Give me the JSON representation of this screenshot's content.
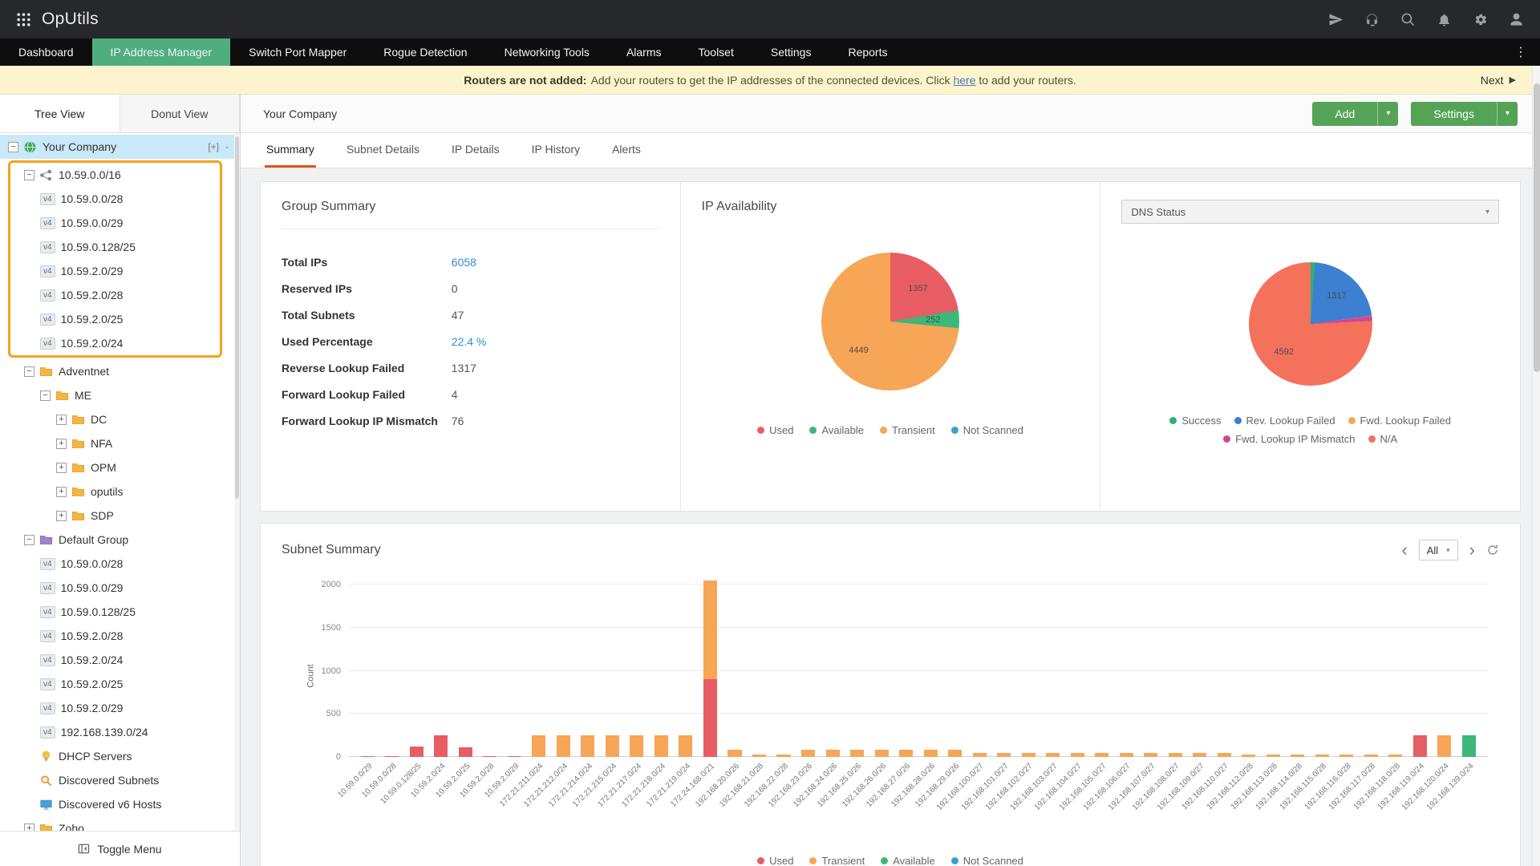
{
  "app": {
    "title": "OpUtils"
  },
  "topbar": {
    "icons": [
      "send",
      "headset",
      "search",
      "bell",
      "gear",
      "user"
    ]
  },
  "nav": {
    "items": [
      {
        "label": "Dashboard",
        "active": false
      },
      {
        "label": "IP Address Manager",
        "active": true
      },
      {
        "label": "Switch Port Mapper",
        "active": false
      },
      {
        "label": "Rogue Detection",
        "active": false
      },
      {
        "label": "Networking Tools",
        "active": false
      },
      {
        "label": "Alarms",
        "active": false
      },
      {
        "label": "Toolset",
        "active": false
      },
      {
        "label": "Settings",
        "active": false
      },
      {
        "label": "Reports",
        "active": false
      }
    ]
  },
  "banner": {
    "bold_text": "Routers are not added:",
    "message": "Add your routers to get the IP addresses of the connected devices. Click",
    "link_text": "here",
    "message_suffix": "to add your routers.",
    "next_label": "Next"
  },
  "sidebar": {
    "tabs": [
      {
        "label": "Tree View",
        "active": true
      },
      {
        "label": "Donut View",
        "active": false
      }
    ],
    "toggle_menu_label": "Toggle Menu",
    "controls": [
      "[+]",
      "-"
    ],
    "tree": [
      {
        "label": "Your Company",
        "depth": 0,
        "icon": "globe",
        "expander": "minus",
        "selected": true,
        "controls": true
      },
      {
        "label": "10.59.0.0/16",
        "depth": 1,
        "icon": "subnet",
        "expander": "minus",
        "box": true
      },
      {
        "label": "10.59.0.0/28",
        "depth": 2,
        "badge": "v4",
        "box": true
      },
      {
        "label": "10.59.0.0/29",
        "depth": 2,
        "badge": "v4",
        "box": true
      },
      {
        "label": "10.59.0.128/25",
        "depth": 2,
        "badge": "v4",
        "box": true
      },
      {
        "label": "10.59.2.0/29",
        "depth": 2,
        "badge": "v4",
        "box": true
      },
      {
        "label": "10.59.2.0/28",
        "depth": 2,
        "badge": "v4",
        "box": true
      },
      {
        "label": "10.59.2.0/25",
        "depth": 2,
        "badge": "v4",
        "box": true
      },
      {
        "label": "10.59.2.0/24",
        "depth": 2,
        "badge": "v4",
        "box": true
      },
      {
        "label": "Adventnet",
        "depth": 1,
        "icon": "folder",
        "expander": "minus"
      },
      {
        "label": "ME",
        "depth": 2,
        "icon": "folder",
        "expander": "minus"
      },
      {
        "label": "DC",
        "depth": 3,
        "icon": "folder",
        "expander": "plus"
      },
      {
        "label": "NFA",
        "depth": 3,
        "icon": "folder",
        "expander": "plus"
      },
      {
        "label": "OPM",
        "depth": 3,
        "icon": "folder",
        "expander": "plus"
      },
      {
        "label": "oputils",
        "depth": 3,
        "icon": "folder",
        "expander": "plus"
      },
      {
        "label": "SDP",
        "depth": 3,
        "icon": "folder",
        "expander": "plus"
      },
      {
        "label": "Default Group",
        "depth": 1,
        "icon": "folder-purple",
        "expander": "minus"
      },
      {
        "label": "10.59.0.0/28",
        "depth": 2,
        "badge": "v4"
      },
      {
        "label": "10.59.0.0/29",
        "depth": 2,
        "badge": "v4"
      },
      {
        "label": "10.59.0.128/25",
        "depth": 2,
        "badge": "v4"
      },
      {
        "label": "10.59.2.0/28",
        "depth": 2,
        "badge": "v4"
      },
      {
        "label": "10.59.2.0/24",
        "depth": 2,
        "badge": "v4"
      },
      {
        "label": "10.59.2.0/25",
        "depth": 2,
        "badge": "v4"
      },
      {
        "label": "10.59.2.0/29",
        "depth": 2,
        "badge": "v4"
      },
      {
        "label": "192.168.139.0/24",
        "depth": 2,
        "badge": "v4"
      },
      {
        "label": "DHCP Servers",
        "depth": 1,
        "icon": "bulb"
      },
      {
        "label": "Discovered Subnets",
        "depth": 1,
        "icon": "search-orange"
      },
      {
        "label": "Discovered v6 Hosts",
        "depth": 1,
        "icon": "monitor"
      },
      {
        "label": "Zoho",
        "depth": 1,
        "icon": "folder",
        "expander": "plus"
      }
    ]
  },
  "toolbar": {
    "breadcrumb": "Your Company",
    "add_label": "Add",
    "settings_label": "Settings"
  },
  "main_tabs": [
    {
      "label": "Summary",
      "active": true
    },
    {
      "label": "Subnet Details",
      "active": false
    },
    {
      "label": "IP Details",
      "active": false
    },
    {
      "label": "IP History",
      "active": false
    },
    {
      "label": "Alerts",
      "active": false
    }
  ],
  "group_summary": {
    "title": "Group Summary",
    "rows": [
      {
        "label": "Total IPs",
        "value": "6058",
        "link": true
      },
      {
        "label": "Reserved IPs",
        "value": "0",
        "link": false
      },
      {
        "label": "Total Subnets",
        "value": "47",
        "link": false
      },
      {
        "label": "Used Percentage",
        "value": "22.4 %",
        "link": true
      },
      {
        "label": "Reverse Lookup Failed",
        "value": "1317",
        "link": false
      },
      {
        "label": "Forward Lookup Failed",
        "value": "4",
        "link": false
      },
      {
        "label": "Forward Lookup IP Mismatch",
        "value": "76",
        "link": false
      }
    ]
  },
  "ip_availability": {
    "title": "IP Availability"
  },
  "dns_status": {
    "selected_option": "DNS Status"
  },
  "subnet_summary": {
    "title": "Subnet Summary",
    "range_selected": "All"
  },
  "chart_data": [
    {
      "id": "ip_availability_pie",
      "type": "pie",
      "title": "IP Availability",
      "slices": [
        {
          "label": "Used",
          "value": 1357,
          "color": "#e85d63",
          "shown_label": "1357"
        },
        {
          "label": "Available",
          "value": 252,
          "color": "#3cb878",
          "shown_label": "252"
        },
        {
          "label": "Transient",
          "value": 4449,
          "color": "#f7a556",
          "shown_label": "4449"
        },
        {
          "label": "Not Scanned",
          "value": 0,
          "color": "#38a3cc"
        }
      ],
      "legend": [
        {
          "label": "Used",
          "color": "#e85d63"
        },
        {
          "label": "Available",
          "color": "#3cb878"
        },
        {
          "label": "Transient",
          "color": "#f7a556"
        },
        {
          "label": "Not Scanned",
          "color": "#38a3cc"
        }
      ],
      "legend_position": "bottom"
    },
    {
      "id": "dns_status_pie",
      "type": "pie",
      "title": "DNS Status",
      "slices": [
        {
          "label": "Success",
          "value": 69,
          "color": "#2eb271"
        },
        {
          "label": "Rev. Lookup Failed",
          "value": 1317,
          "color": "#3d7fd0",
          "shown_label": "1317"
        },
        {
          "label": "Fwd. Lookup Failed",
          "value": 4,
          "color": "#f7a556"
        },
        {
          "label": "Fwd. Lookup IP Mismatch",
          "value": 76,
          "color": "#d2458f"
        },
        {
          "label": "N/A",
          "value": 4592,
          "color": "#f4715c",
          "shown_label": "4592"
        }
      ],
      "legend_rows": [
        [
          {
            "label": "Success",
            "color": "#2eb271"
          },
          {
            "label": "Rev. Lookup Failed",
            "color": "#3d7fd0"
          },
          {
            "label": "Fwd. Lookup Failed",
            "color": "#f7a556"
          }
        ],
        [
          {
            "label": "Fwd. Lookup IP Mismatch",
            "color": "#d2458f"
          },
          {
            "label": "N/A",
            "color": "#f4715c"
          }
        ]
      ],
      "legend_position": "bottom"
    },
    {
      "id": "subnet_summary_bar",
      "type": "bar",
      "stacked": true,
      "title": "Subnet Summary",
      "xlabel": "",
      "ylabel": "Count",
      "ylim": [
        0,
        2000
      ],
      "yticks": [
        0,
        500,
        1000,
        1500,
        2000
      ],
      "grid": true,
      "series_keys": [
        "used",
        "transient",
        "available",
        "not_scanned"
      ],
      "series_colors": {
        "used": "#e85d63",
        "transient": "#f7a556",
        "available": "#3cb878",
        "not_scanned": "#38a3cc"
      },
      "legend": [
        {
          "label": "Used",
          "color": "#e85d63"
        },
        {
          "label": "Transient",
          "color": "#f7a556"
        },
        {
          "label": "Available",
          "color": "#3cb878"
        },
        {
          "label": "Not Scanned",
          "color": "#38a3cc"
        }
      ],
      "legend_position": "bottom",
      "bars": [
        {
          "label": "10.59.0.0/29",
          "used": 5
        },
        {
          "label": "10.59.0.0/28",
          "used": 12
        },
        {
          "label": "10.59.0.128/25",
          "used": 120
        },
        {
          "label": "10.59.2.0/24",
          "used": 250
        },
        {
          "label": "10.59.2.0/25",
          "used": 115
        },
        {
          "label": "10.59.2.0/28",
          "used": 12
        },
        {
          "label": "10.59.2.0/29",
          "used": 5
        },
        {
          "label": "172.21.211.0/24",
          "transient": 250
        },
        {
          "label": "172.21.212.0/24",
          "transient": 250
        },
        {
          "label": "172.21.214.0/24",
          "transient": 250
        },
        {
          "label": "172.21.215.0/24",
          "transient": 250
        },
        {
          "label": "172.21.217.0/24",
          "transient": 250
        },
        {
          "label": "172.21.218.0/24",
          "transient": 250
        },
        {
          "label": "172.21.219.0/24",
          "transient": 250
        },
        {
          "label": "172.24.168.0/21",
          "used": 900,
          "transient": 1150
        },
        {
          "label": "192.168.20.0/26",
          "transient": 80
        },
        {
          "label": "192.168.21.0/28",
          "transient": 25
        },
        {
          "label": "192.168.22.0/28",
          "transient": 25
        },
        {
          "label": "192.168.23.0/26",
          "transient": 80
        },
        {
          "label": "192.168.24.0/26",
          "transient": 80
        },
        {
          "label": "192.168.25.0/26",
          "transient": 80
        },
        {
          "label": "192.168.26.0/26",
          "transient": 80
        },
        {
          "label": "192.168.27.0/26",
          "transient": 80
        },
        {
          "label": "192.168.28.0/26",
          "transient": 80
        },
        {
          "label": "192.168.29.0/26",
          "transient": 80
        },
        {
          "label": "192.168.100.0/27",
          "transient": 50
        },
        {
          "label": "192.168.101.0/27",
          "transient": 50
        },
        {
          "label": "192.168.102.0/27",
          "transient": 50
        },
        {
          "label": "192.168.103.0/27",
          "transient": 50
        },
        {
          "label": "192.168.104.0/27",
          "transient": 50
        },
        {
          "label": "192.168.105.0/27",
          "transient": 50
        },
        {
          "label": "192.168.106.0/27",
          "transient": 50
        },
        {
          "label": "192.168.107.0/27",
          "transient": 50
        },
        {
          "label": "192.168.108.0/27",
          "transient": 50
        },
        {
          "label": "192.168.109.0/27",
          "transient": 50
        },
        {
          "label": "192.168.110.0/27",
          "transient": 50
        },
        {
          "label": "192.168.112.0/28",
          "transient": 30
        },
        {
          "label": "192.168.113.0/28",
          "transient": 30
        },
        {
          "label": "192.168.114.0/28",
          "transient": 30
        },
        {
          "label": "192.168.115.0/28",
          "transient": 30
        },
        {
          "label": "192.168.116.0/28",
          "transient": 30
        },
        {
          "label": "192.168.117.0/28",
          "transient": 30
        },
        {
          "label": "192.168.118.0/28",
          "transient": 30
        },
        {
          "label": "192.168.119.0/24",
          "used": 250
        },
        {
          "label": "192.168.120.0/24",
          "transient": 250
        },
        {
          "label": "192.168.139.0/24",
          "available": 250
        }
      ]
    }
  ]
}
